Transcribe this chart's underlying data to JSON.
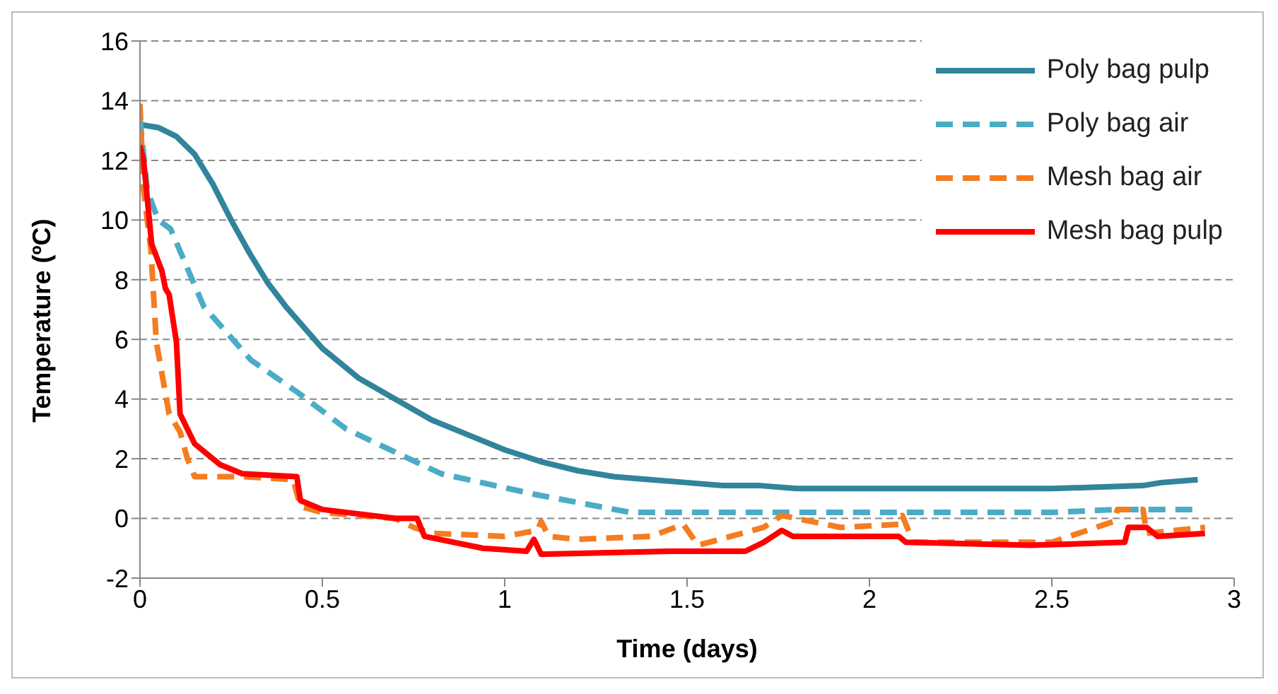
{
  "chart_data": {
    "type": "line",
    "xlabel": "Time (days)",
    "ylabel": "Temperature (ºC)",
    "xlim": [
      0,
      3
    ],
    "xticks": [
      0,
      0.5,
      1,
      1.5,
      2,
      2.5,
      3
    ],
    "ylim": [
      -2,
      16
    ],
    "yticks": [
      -2,
      0,
      2,
      4,
      6,
      8,
      10,
      12,
      14,
      16
    ],
    "grid": "y",
    "legend": "top right",
    "marker": "none",
    "series": [
      {
        "name": "Poly bag pulp",
        "color": "#31849b",
        "line_style": "solid",
        "x": [
          0,
          0.05,
          0.1,
          0.15,
          0.2,
          0.25,
          0.3,
          0.35,
          0.4,
          0.45,
          0.5,
          0.6,
          0.7,
          0.8,
          0.9,
          1.0,
          1.1,
          1.2,
          1.3,
          1.4,
          1.5,
          1.6,
          1.7,
          1.8,
          2.0,
          2.5,
          2.75,
          2.8,
          2.9
        ],
        "values": [
          13.2,
          13.1,
          12.8,
          12.2,
          11.2,
          10,
          8.9,
          7.9,
          7.1,
          6.4,
          5.7,
          4.7,
          4,
          3.3,
          2.8,
          2.3,
          1.9,
          1.6,
          1.4,
          1.3,
          1.2,
          1.1,
          1.1,
          1.0,
          1.0,
          1.0,
          1.1,
          1.2,
          1.3
        ]
      },
      {
        "name": "Poly bag air",
        "color": "#4bacc6",
        "line_style": "dashed",
        "x": [
          0,
          0.02,
          0.05,
          0.084,
          0.175,
          0.305,
          0.435,
          0.565,
          0.825,
          1.085,
          1.345,
          1.5,
          1.75,
          2.0,
          2.5,
          2.68,
          2.75,
          2.9
        ],
        "values": [
          13.4,
          11,
          10,
          9.7,
          7.1,
          5.3,
          4.2,
          3,
          1.5,
          0.8,
          0.2,
          0.2,
          0.2,
          0.2,
          0.2,
          0.3,
          0.3,
          0.3
        ]
      },
      {
        "name": "Mesh bag air",
        "color": "#f57c1f",
        "line_style": "dashed",
        "x": [
          0,
          0.01,
          0.03,
          0.045,
          0.08,
          0.11,
          0.13,
          0.15,
          0.28,
          0.42,
          0.44,
          0.5,
          0.7,
          0.75,
          0.8,
          1.0,
          1.09,
          1.1,
          1.12,
          1.2,
          1.4,
          1.49,
          1.53,
          1.71,
          1.76,
          1.92,
          2.08,
          2.09,
          2.12,
          2.3,
          2.5,
          2.67,
          2.68,
          2.75,
          2.76,
          2.92
        ],
        "values": [
          13.9,
          11,
          9,
          5.9,
          3.5,
          2.9,
          2,
          1.4,
          1.4,
          1.3,
          0.4,
          0.2,
          0,
          -0.3,
          -0.5,
          -0.6,
          -0.4,
          -0.1,
          -0.6,
          -0.7,
          -0.6,
          -0.2,
          -0.9,
          -0.3,
          0.1,
          -0.3,
          -0.2,
          0.1,
          -0.8,
          -0.8,
          -0.8,
          -0.1,
          0.3,
          0.3,
          -0.5,
          -0.3
        ]
      },
      {
        "name": "Mesh bag pulp",
        "color": "#ff0000",
        "line_style": "solid",
        "x": [
          0,
          0.01,
          0.032,
          0.06,
          0.07,
          0.08,
          0.1,
          0.11,
          0.13,
          0.15,
          0.22,
          0.28,
          0.43,
          0.44,
          0.5,
          0.7,
          0.76,
          0.78,
          0.94,
          1.06,
          1.08,
          1.1,
          1.45,
          1.66,
          1.71,
          1.76,
          1.79,
          2.08,
          2.1,
          2.44,
          2.7,
          2.71,
          2.76,
          2.79,
          2.92
        ],
        "values": [
          12.5,
          12,
          9.2,
          8.3,
          7.7,
          7.5,
          5.9,
          3.5,
          3,
          2.5,
          1.8,
          1.5,
          1.4,
          0.6,
          0.3,
          0,
          0,
          -0.6,
          -1,
          -1.1,
          -0.7,
          -1.2,
          -1.1,
          -1.1,
          -0.8,
          -0.4,
          -0.6,
          -0.6,
          -0.8,
          -0.9,
          -0.8,
          -0.3,
          -0.3,
          -0.6,
          -0.5
        ]
      }
    ]
  }
}
